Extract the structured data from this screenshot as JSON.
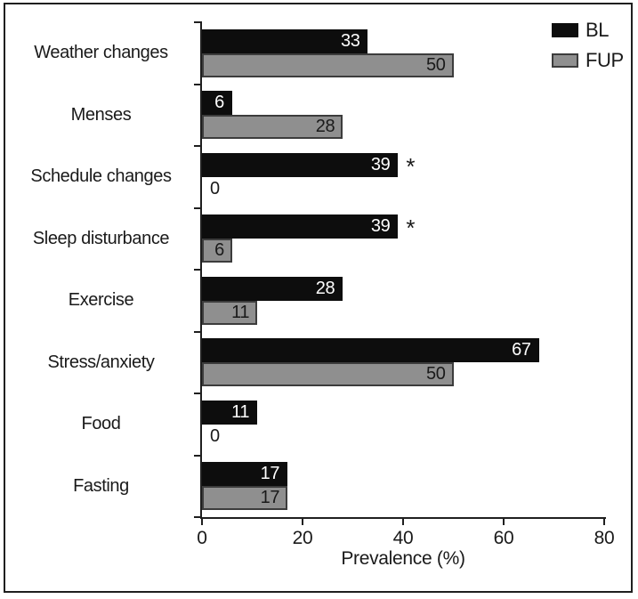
{
  "chart_data": {
    "type": "bar",
    "orientation": "horizontal",
    "title": "",
    "xlabel": "Prevalence (%)",
    "xlim": [
      0,
      80
    ],
    "xticks": [
      0,
      20,
      40,
      60,
      80
    ],
    "grid": false,
    "legend_position": "top-right",
    "categories": [
      "Weather changes",
      "Menses",
      "Schedule changes",
      "Sleep disturbance",
      "Exercise",
      "Stress/anxiety",
      "Food",
      "Fasting"
    ],
    "series": [
      {
        "name": "BL",
        "color": "#0d0d0d",
        "label_color": "#ffffff",
        "values": [
          33,
          6,
          39,
          39,
          28,
          67,
          11,
          17
        ],
        "annotations": [
          "",
          "",
          "*",
          "*",
          "",
          "",
          "",
          ""
        ]
      },
      {
        "name": "FUP",
        "color": "#8f8f8f",
        "border_color": "#3c3c3c",
        "label_color": "#1a1a1a",
        "values": [
          50,
          28,
          0,
          6,
          11,
          50,
          0,
          17
        ],
        "annotations": [
          "",
          "",
          "",
          "",
          "",
          "",
          "",
          ""
        ]
      }
    ]
  },
  "colors": {
    "frame": "#1f1f1f",
    "axis": "#1f1f1f",
    "text": "#1a1a1a",
    "bl_bar": "#0d0d0d",
    "fup_bar": "#8f8f8f",
    "fup_border": "#3c3c3c",
    "background": "#ffffff"
  }
}
